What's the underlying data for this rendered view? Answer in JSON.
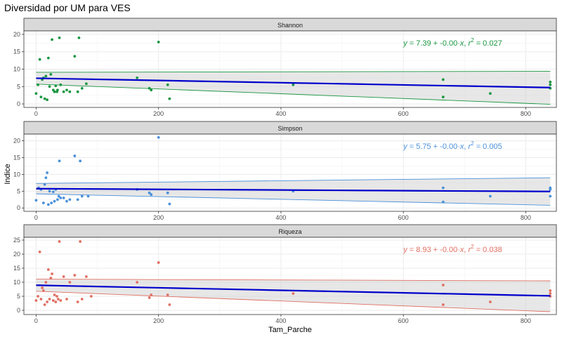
{
  "title": "Diversidad por UM para VES",
  "xlabel": "Tam_Parche",
  "ylabel": "Indice",
  "chart_data": [
    {
      "type": "scatter",
      "panel": "Shannon",
      "color": "#1a9641",
      "xlim": [
        -20,
        850
      ],
      "ylim": [
        -1,
        21
      ],
      "x_ticks": [
        0,
        200,
        400,
        600,
        800
      ],
      "y_ticks": [
        0,
        5,
        10,
        15,
        20
      ],
      "equation": {
        "intercept": "7.39",
        "slope": "-0.00",
        "r2": "0.027"
      },
      "fit": {
        "intercept": 7.39,
        "slope": -0.0032,
        "ci_left": [
          5.7,
          9.1
        ],
        "ci_right": [
          -0.1,
          9.4
        ]
      },
      "points": [
        [
          0,
          3
        ],
        [
          3,
          5.5
        ],
        [
          6,
          12.8
        ],
        [
          8,
          2
        ],
        [
          10,
          7
        ],
        [
          12,
          7.5
        ],
        [
          14,
          1.5
        ],
        [
          16,
          8
        ],
        [
          18,
          1.2
        ],
        [
          20,
          13.2
        ],
        [
          22,
          5
        ],
        [
          24,
          8.5
        ],
        [
          26,
          18.5
        ],
        [
          28,
          4
        ],
        [
          30,
          3.5
        ],
        [
          32,
          5.2
        ],
        [
          34,
          3.5
        ],
        [
          35,
          4
        ],
        [
          38,
          19
        ],
        [
          40,
          5.5
        ],
        [
          45,
          3.5
        ],
        [
          50,
          4
        ],
        [
          55,
          3.5
        ],
        [
          63,
          13.7
        ],
        [
          68,
          3.5
        ],
        [
          70,
          19
        ],
        [
          75,
          4.5
        ],
        [
          82,
          5.8
        ],
        [
          165,
          7.5
        ],
        [
          185,
          4.5
        ],
        [
          188,
          4
        ],
        [
          200,
          17.8
        ],
        [
          215,
          5.5
        ],
        [
          218,
          1.5
        ],
        [
          420,
          5.5
        ],
        [
          665,
          7
        ],
        [
          665,
          2
        ],
        [
          742,
          3
        ],
        [
          840,
          4.5
        ],
        [
          840,
          5.5
        ],
        [
          840,
          6.3
        ]
      ]
    },
    {
      "type": "scatter",
      "panel": "Simpson",
      "color": "#4a90d9",
      "xlim": [
        -20,
        850
      ],
      "ylim": [
        -1,
        22
      ],
      "x_ticks": [
        0,
        200,
        400,
        600,
        800
      ],
      "y_ticks": [
        0,
        5,
        10,
        15,
        20
      ],
      "equation": {
        "intercept": "5.75",
        "slope": "-0.00",
        "r2": "0.005"
      },
      "fit": {
        "intercept": 5.75,
        "slope": -0.001,
        "ci_left": [
          4.2,
          7.3
        ],
        "ci_right": [
          0.8,
          9.0
        ]
      },
      "points": [
        [
          0,
          2.3
        ],
        [
          4,
          6
        ],
        [
          8,
          5.5
        ],
        [
          12,
          1.5
        ],
        [
          14,
          7
        ],
        [
          16,
          9
        ],
        [
          18,
          10.5
        ],
        [
          20,
          1
        ],
        [
          22,
          5
        ],
        [
          25,
          1.5
        ],
        [
          28,
          4.8
        ],
        [
          30,
          2
        ],
        [
          32,
          5.5
        ],
        [
          35,
          2.5
        ],
        [
          37,
          3.5
        ],
        [
          38,
          14
        ],
        [
          40,
          3
        ],
        [
          45,
          3
        ],
        [
          50,
          2
        ],
        [
          55,
          2.5
        ],
        [
          63,
          15.5
        ],
        [
          68,
          2.5
        ],
        [
          72,
          14
        ],
        [
          75,
          3.5
        ],
        [
          85,
          3.5
        ],
        [
          165,
          5.5
        ],
        [
          185,
          4.5
        ],
        [
          188,
          4
        ],
        [
          200,
          21
        ],
        [
          215,
          4.5
        ],
        [
          218,
          1.2
        ],
        [
          420,
          5
        ],
        [
          665,
          6
        ],
        [
          665,
          1.8
        ],
        [
          742,
          3.5
        ],
        [
          840,
          6
        ],
        [
          840,
          5.5
        ],
        [
          840,
          3.5
        ]
      ]
    },
    {
      "type": "scatter",
      "panel": "Riqueza",
      "color": "#e07063",
      "xlim": [
        -20,
        850
      ],
      "ylim": [
        -1.5,
        26
      ],
      "x_ticks": [
        0,
        200,
        400,
        600,
        800
      ],
      "y_ticks": [
        0,
        5,
        10,
        15,
        20,
        25
      ],
      "equation": {
        "intercept": "8.93",
        "slope": "-0.00",
        "r2": "0.038"
      },
      "fit": {
        "intercept": 8.93,
        "slope": -0.0045,
        "ci_left": [
          6.8,
          11.1
        ],
        "ci_right": [
          -0.5,
          10.5
        ]
      },
      "points": [
        [
          0,
          3.5
        ],
        [
          3,
          5
        ],
        [
          6,
          20.8
        ],
        [
          8,
          4
        ],
        [
          10,
          8
        ],
        [
          12,
          7
        ],
        [
          14,
          2
        ],
        [
          16,
          10
        ],
        [
          18,
          3
        ],
        [
          20,
          14.5
        ],
        [
          22,
          4
        ],
        [
          24,
          11.5
        ],
        [
          26,
          13
        ],
        [
          28,
          3.5
        ],
        [
          30,
          5.5
        ],
        [
          32,
          3
        ],
        [
          34,
          5
        ],
        [
          36,
          4
        ],
        [
          38,
          24.5
        ],
        [
          40,
          3.5
        ],
        [
          45,
          12
        ],
        [
          50,
          4
        ],
        [
          55,
          10
        ],
        [
          63,
          12.5
        ],
        [
          68,
          3
        ],
        [
          72,
          24.5
        ],
        [
          75,
          4
        ],
        [
          82,
          12
        ],
        [
          90,
          5
        ],
        [
          165,
          10
        ],
        [
          185,
          4.5
        ],
        [
          188,
          5.5
        ],
        [
          200,
          17
        ],
        [
          215,
          5.5
        ],
        [
          218,
          2
        ],
        [
          420,
          6
        ],
        [
          665,
          9
        ],
        [
          665,
          2
        ],
        [
          742,
          3
        ],
        [
          840,
          5
        ],
        [
          840,
          7
        ],
        [
          840,
          6
        ]
      ]
    }
  ]
}
